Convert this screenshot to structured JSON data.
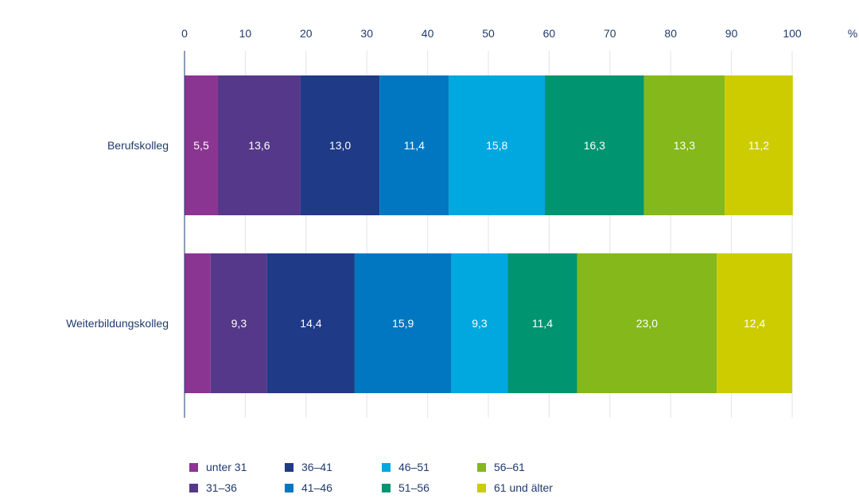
{
  "chart_data": {
    "type": "bar",
    "orientation": "horizontal",
    "stacked": true,
    "categories": [
      "Berufskolleg",
      "Weiterbildungskolleg"
    ],
    "unit_label": "%",
    "xlim": [
      0,
      100
    ],
    "x_ticks": [
      0,
      10,
      20,
      30,
      40,
      50,
      60,
      70,
      80,
      90,
      100
    ],
    "grid": true,
    "legend_position": "bottom",
    "series": [
      {
        "name": "unter 31",
        "color": "#8b3592",
        "values": [
          5.5,
          4.3
        ],
        "labels": [
          "5,5",
          ""
        ]
      },
      {
        "name": "31–36",
        "color": "#553889",
        "values": [
          13.6,
          9.3
        ],
        "labels": [
          "13,6",
          "9,3"
        ]
      },
      {
        "name": "36–41",
        "color": "#1f3a87",
        "values": [
          13.0,
          14.4
        ],
        "labels": [
          "13,0",
          "14,4"
        ]
      },
      {
        "name": "41–46",
        "color": "#0077c0",
        "values": [
          11.4,
          15.9
        ],
        "labels": [
          "11,4",
          "15,9"
        ]
      },
      {
        "name": "46–51",
        "color": "#00a8e0",
        "values": [
          15.8,
          9.3
        ],
        "labels": [
          "15,8",
          "9,3"
        ]
      },
      {
        "name": "51–56",
        "color": "#009470",
        "values": [
          16.3,
          11.4
        ],
        "labels": [
          "16,3",
          "11,4"
        ]
      },
      {
        "name": "56–61",
        "color": "#84b81b",
        "values": [
          13.3,
          23.0
        ],
        "labels": [
          "13,3",
          "23,0"
        ]
      },
      {
        "name": "61 und älter",
        "color": "#cccc00",
        "values": [
          11.2,
          12.4
        ],
        "labels": [
          "11,2",
          "12,4"
        ]
      }
    ]
  }
}
